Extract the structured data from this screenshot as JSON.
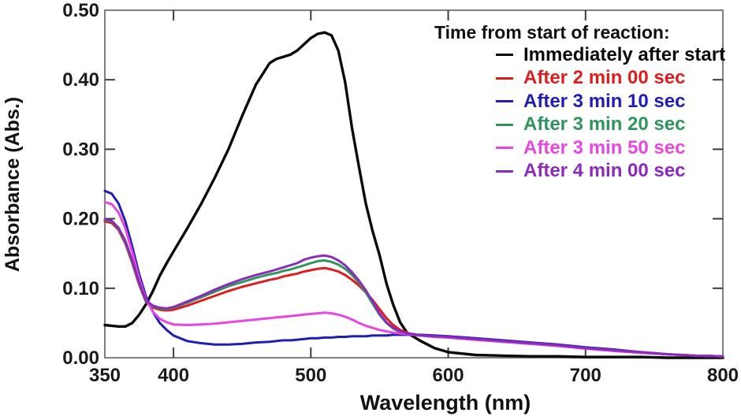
{
  "chart_data": {
    "type": "line",
    "title": "",
    "xlabel": "Wavelength (nm)",
    "ylabel": "Absorbance (Abs.)",
    "xlim": [
      350,
      800
    ],
    "ylim": [
      0,
      0.5
    ],
    "grid": false,
    "frame_color": "#7f7f7f",
    "tick_color": "#3c3c3c",
    "x_ticks": [
      350,
      400,
      500,
      600,
      700,
      800
    ],
    "x_tick_labels": [
      "350",
      "400",
      "500",
      "600",
      "700",
      "800"
    ],
    "x_box_ticks": [
      400,
      500,
      600,
      700
    ],
    "y_ticks": [
      0,
      0.1,
      0.2,
      0.3,
      0.4,
      0.5
    ],
    "y_tick_labels": [
      "0.00",
      "0.10",
      "0.20",
      "0.30",
      "0.40",
      "0.50"
    ],
    "y_box_ticks": [
      0.1,
      0.2,
      0.3,
      0.4
    ],
    "legend": {
      "position": "top-right",
      "title": "Time from start of reaction:"
    },
    "wavelengths_nm": [
      350,
      355,
      360,
      365,
      370,
      375,
      380,
      385,
      390,
      395,
      400,
      410,
      420,
      430,
      440,
      450,
      460,
      470,
      475,
      480,
      485,
      490,
      495,
      500,
      505,
      510,
      515,
      520,
      525,
      530,
      535,
      540,
      545,
      550,
      555,
      560,
      565,
      570,
      575,
      580,
      590,
      600,
      620,
      640,
      660,
      680,
      700,
      720,
      740,
      760,
      780,
      800
    ],
    "series": [
      {
        "label": "Immediately after start",
        "color": "#0a0a0a",
        "width": 3.4,
        "values": [
          0.047,
          0.046,
          0.045,
          0.045,
          0.05,
          0.062,
          0.077,
          0.096,
          0.118,
          0.136,
          0.153,
          0.186,
          0.221,
          0.259,
          0.3,
          0.348,
          0.393,
          0.424,
          0.43,
          0.433,
          0.436,
          0.442,
          0.451,
          0.46,
          0.466,
          0.468,
          0.464,
          0.442,
          0.396,
          0.33,
          0.275,
          0.222,
          0.182,
          0.148,
          0.107,
          0.076,
          0.051,
          0.036,
          0.03,
          0.024,
          0.014,
          0.008,
          0.004,
          0.003,
          0.002,
          0.002,
          0.001,
          0.001,
          0.001,
          0.0,
          0.0,
          0.0
        ]
      },
      {
        "label": "After 2 min 00 sec",
        "color": "#dc1e1e",
        "width": 3,
        "values": [
          0.196,
          0.194,
          0.184,
          0.164,
          0.136,
          0.105,
          0.08,
          0.072,
          0.069,
          0.068,
          0.069,
          0.075,
          0.082,
          0.089,
          0.096,
          0.102,
          0.107,
          0.112,
          0.114,
          0.117,
          0.119,
          0.121,
          0.124,
          0.126,
          0.128,
          0.129,
          0.127,
          0.124,
          0.119,
          0.112,
          0.104,
          0.094,
          0.083,
          0.07,
          0.057,
          0.047,
          0.04,
          0.036,
          0.033,
          0.032,
          0.031,
          0.029,
          0.026,
          0.023,
          0.021,
          0.018,
          0.014,
          0.011,
          0.008,
          0.005,
          0.003,
          0.002
        ]
      },
      {
        "label": "After 3 min 10 sec",
        "color": "#1e1eb4",
        "width": 3,
        "values": [
          0.24,
          0.236,
          0.222,
          0.196,
          0.16,
          0.12,
          0.088,
          0.066,
          0.05,
          0.04,
          0.032,
          0.024,
          0.021,
          0.019,
          0.019,
          0.02,
          0.022,
          0.023,
          0.024,
          0.025,
          0.025,
          0.026,
          0.027,
          0.028,
          0.028,
          0.029,
          0.029,
          0.03,
          0.03,
          0.031,
          0.031,
          0.031,
          0.032,
          0.032,
          0.032,
          0.033,
          0.033,
          0.033,
          0.033,
          0.033,
          0.032,
          0.031,
          0.028,
          0.025,
          0.022,
          0.019,
          0.015,
          0.012,
          0.008,
          0.005,
          0.003,
          0.002
        ]
      },
      {
        "label": "After 3 min 20 sec",
        "color": "#2e965a",
        "width": 3,
        "values": [
          0.198,
          0.196,
          0.186,
          0.166,
          0.138,
          0.107,
          0.081,
          0.074,
          0.071,
          0.07,
          0.072,
          0.079,
          0.087,
          0.095,
          0.103,
          0.109,
          0.115,
          0.12,
          0.122,
          0.125,
          0.127,
          0.13,
          0.133,
          0.136,
          0.139,
          0.14,
          0.138,
          0.134,
          0.128,
          0.119,
          0.108,
          0.094,
          0.078,
          0.062,
          0.05,
          0.042,
          0.037,
          0.035,
          0.033,
          0.032,
          0.03,
          0.029,
          0.026,
          0.023,
          0.02,
          0.017,
          0.014,
          0.01,
          0.007,
          0.005,
          0.003,
          0.002
        ]
      },
      {
        "label": "After 3 min 50 sec",
        "color": "#e846e0",
        "width": 3,
        "values": [
          0.224,
          0.221,
          0.209,
          0.186,
          0.152,
          0.114,
          0.084,
          0.066,
          0.056,
          0.051,
          0.048,
          0.047,
          0.048,
          0.049,
          0.051,
          0.053,
          0.055,
          0.057,
          0.058,
          0.059,
          0.06,
          0.061,
          0.062,
          0.063,
          0.064,
          0.065,
          0.064,
          0.062,
          0.059,
          0.055,
          0.05,
          0.046,
          0.043,
          0.04,
          0.038,
          0.036,
          0.035,
          0.034,
          0.033,
          0.032,
          0.03,
          0.029,
          0.026,
          0.023,
          0.02,
          0.017,
          0.013,
          0.01,
          0.007,
          0.005,
          0.003,
          0.002
        ]
      },
      {
        "label": "After 4 min 00 sec",
        "color": "#8c2abe",
        "width": 3,
        "values": [
          0.199,
          0.197,
          0.187,
          0.168,
          0.14,
          0.108,
          0.082,
          0.075,
          0.072,
          0.071,
          0.073,
          0.081,
          0.089,
          0.098,
          0.106,
          0.113,
          0.119,
          0.124,
          0.127,
          0.13,
          0.133,
          0.136,
          0.141,
          0.144,
          0.146,
          0.147,
          0.145,
          0.14,
          0.133,
          0.123,
          0.111,
          0.097,
          0.081,
          0.064,
          0.051,
          0.043,
          0.038,
          0.035,
          0.034,
          0.032,
          0.031,
          0.03,
          0.027,
          0.024,
          0.021,
          0.018,
          0.014,
          0.011,
          0.008,
          0.005,
          0.003,
          0.002
        ]
      }
    ]
  }
}
